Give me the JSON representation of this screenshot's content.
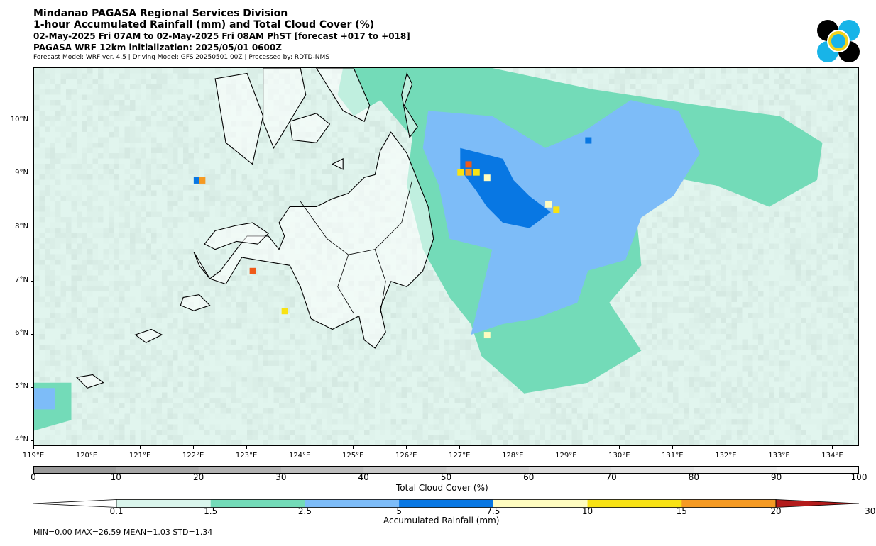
{
  "header": {
    "title1": "Mindanao PAGASA Regional Services Division",
    "title2": "1-hour Accumulated Rainfall (mm) and Total Cloud Cover (%)",
    "title3": "02-May-2025 Fri 07AM to 02-May-2025 Fri 08AM PhST [forecast +017 to +018]",
    "title4": "PAGASA WRF 12km initialization: 2025/05/01 0600Z",
    "title5": "Forecast Model: WRF ver. 4.5 | Driving Model: GFS 20250501 00Z | Processed by: RDTD-NMS"
  },
  "logo": {
    "icon": "pagasa-logo-icon",
    "colors": [
      "#000000",
      "#18b4e8",
      "#f2d21a"
    ]
  },
  "map": {
    "lat_labels": [
      "10°N",
      "9°N",
      "8°N",
      "7°N",
      "6°N",
      "5°N",
      "4°N"
    ],
    "lat_values": [
      10,
      9,
      8,
      7,
      6,
      5,
      4
    ],
    "lon_labels": [
      "119°E",
      "120°E",
      "121°E",
      "122°E",
      "123°E",
      "124°E",
      "125°E",
      "126°E",
      "127°E",
      "128°E",
      "129°E",
      "130°E",
      "131°E",
      "132°E",
      "133°E",
      "134°E"
    ],
    "lon_values": [
      119,
      120,
      121,
      122,
      123,
      124,
      125,
      126,
      127,
      128,
      129,
      130,
      131,
      132,
      133,
      134
    ],
    "lon_range": [
      119,
      134.5
    ],
    "lat_range": [
      3.9,
      11.0
    ],
    "colors": {
      "background": "#f4f4f4",
      "coast": "#000000"
    }
  },
  "cloud_colorbar": {
    "title": "Total Cloud Cover (%)",
    "ticks": [
      "0",
      "10",
      "20",
      "30",
      "40",
      "50",
      "60",
      "70",
      "80",
      "90",
      "100"
    ],
    "colors": [
      "#9a9a9a",
      "#a6a6a6",
      "#b2b2b2",
      "#bdbdbd",
      "#c8c8c8",
      "#d2d2d2",
      "#dcdcdc",
      "#e4e4e4",
      "#ececec",
      "#f4f4f4"
    ]
  },
  "rain_colorbar": {
    "title": "Accumulated Rainfall (mm)",
    "ticks": [
      "0.1",
      "1.5",
      "2.5",
      "5",
      "7.5",
      "10",
      "15",
      "20",
      "30"
    ],
    "colors": [
      "#daf5ec",
      "#73dbb8",
      "#7dbcf8",
      "#0877e3",
      "#fffcc0",
      "#f8e213",
      "#f59a23",
      "#ef5a19",
      "#b31b1b"
    ]
  },
  "stats": "MIN=0.00   MAX=26.59   MEAN=1.03   STD=1.34",
  "chart_data": {
    "type": "heatmap",
    "title": "1-hour Accumulated Rainfall (mm) and Total Cloud Cover (%)",
    "x_axis": "longitude (°E)",
    "y_axis": "latitude (°N)",
    "xlim": [
      119,
      134.5
    ],
    "ylim": [
      3.9,
      11.0
    ],
    "rain_bins_mm": [
      0.1,
      1.5,
      2.5,
      5,
      7.5,
      10,
      15,
      20,
      30
    ],
    "cloud_bins_pct": [
      0,
      10,
      20,
      30,
      40,
      50,
      60,
      70,
      80,
      90,
      100
    ],
    "min": 0.0,
    "max": 26.59,
    "mean": 1.03,
    "std": 1.34,
    "rain_regions": [
      {
        "level": 1,
        "polygon": [
          [
            119,
            4.3
          ],
          [
            119,
            11
          ],
          [
            134.5,
            11
          ],
          [
            134.5,
            3.9
          ],
          [
            119,
            3.9
          ]
        ]
      },
      {
        "level": 2,
        "polygon": [
          [
            125.0,
            11.0
          ],
          [
            127.6,
            11.0
          ],
          [
            129.5,
            10.6
          ],
          [
            131.5,
            10.3
          ],
          [
            133.0,
            10.1
          ],
          [
            133.8,
            9.6
          ],
          [
            133.7,
            8.9
          ],
          [
            132.8,
            8.4
          ],
          [
            131.8,
            8.8
          ],
          [
            130.7,
            9.0
          ],
          [
            130.3,
            8.3
          ],
          [
            130.4,
            7.3
          ],
          [
            129.8,
            6.6
          ],
          [
            130.4,
            5.7
          ],
          [
            129.4,
            5.1
          ],
          [
            128.2,
            4.9
          ],
          [
            127.4,
            5.6
          ],
          [
            127.2,
            6.2
          ],
          [
            126.8,
            6.7
          ],
          [
            126.3,
            7.6
          ],
          [
            126.0,
            8.8
          ],
          [
            126.1,
            9.7
          ],
          [
            125.5,
            10.4
          ]
        ]
      },
      {
        "level": 3,
        "polygon": [
          [
            126.4,
            10.2
          ],
          [
            127.6,
            10.1
          ],
          [
            128.6,
            9.5
          ],
          [
            129.3,
            9.8
          ],
          [
            130.2,
            10.4
          ],
          [
            131.1,
            10.2
          ],
          [
            131.5,
            9.4
          ],
          [
            131.0,
            8.6
          ],
          [
            130.4,
            8.2
          ],
          [
            130.1,
            7.4
          ],
          [
            129.4,
            7.2
          ],
          [
            129.2,
            6.6
          ],
          [
            128.4,
            6.3
          ],
          [
            127.8,
            6.2
          ],
          [
            127.2,
            6.0
          ],
          [
            127.4,
            6.8
          ],
          [
            127.6,
            7.6
          ],
          [
            126.8,
            7.8
          ],
          [
            126.6,
            8.8
          ],
          [
            126.3,
            9.5
          ]
        ]
      },
      {
        "level": 4,
        "polygon": [
          [
            127.0,
            9.5
          ],
          [
            127.8,
            9.3
          ],
          [
            128.0,
            8.9
          ],
          [
            128.3,
            8.6
          ],
          [
            128.7,
            8.3
          ],
          [
            128.3,
            8.0
          ],
          [
            127.8,
            8.1
          ],
          [
            127.5,
            8.4
          ],
          [
            127.3,
            8.7
          ],
          [
            127.0,
            9.1
          ]
        ]
      },
      {
        "level": 2,
        "polygon": [
          [
            119.0,
            5.1
          ],
          [
            119.7,
            5.1
          ],
          [
            119.7,
            4.4
          ],
          [
            119.0,
            4.2
          ]
        ]
      },
      {
        "level": 3,
        "polygon": [
          [
            119.0,
            5.0
          ],
          [
            119.4,
            5.0
          ],
          [
            119.4,
            4.6
          ],
          [
            119.0,
            4.6
          ]
        ]
      },
      {
        "level": 2,
        "polygon": [
          [
            124.8,
            11.0
          ],
          [
            125.4,
            11.0
          ],
          [
            125.5,
            10.4
          ],
          [
            125.0,
            10.1
          ],
          [
            124.7,
            10.5
          ]
        ]
      }
    ],
    "rain_cells": [
      {
        "lon": 127.0,
        "lat": 9.05,
        "level": 6
      },
      {
        "lon": 127.15,
        "lat": 9.2,
        "level": 8
      },
      {
        "lon": 127.3,
        "lat": 9.05,
        "level": 6
      },
      {
        "lon": 127.15,
        "lat": 9.05,
        "level": 7
      },
      {
        "lon": 127.5,
        "lat": 8.95,
        "level": 5
      },
      {
        "lon": 128.65,
        "lat": 8.45,
        "level": 5
      },
      {
        "lon": 128.8,
        "lat": 8.35,
        "level": 6
      },
      {
        "lon": 122.05,
        "lat": 8.9,
        "level": 4
      },
      {
        "lon": 122.15,
        "lat": 8.9,
        "level": 7
      },
      {
        "lon": 123.1,
        "lat": 7.2,
        "level": 8
      },
      {
        "lon": 123.7,
        "lat": 6.45,
        "level": 6
      },
      {
        "lon": 127.5,
        "lat": 6.0,
        "level": 5
      },
      {
        "lon": 129.4,
        "lat": 9.65,
        "level": 4
      }
    ]
  }
}
